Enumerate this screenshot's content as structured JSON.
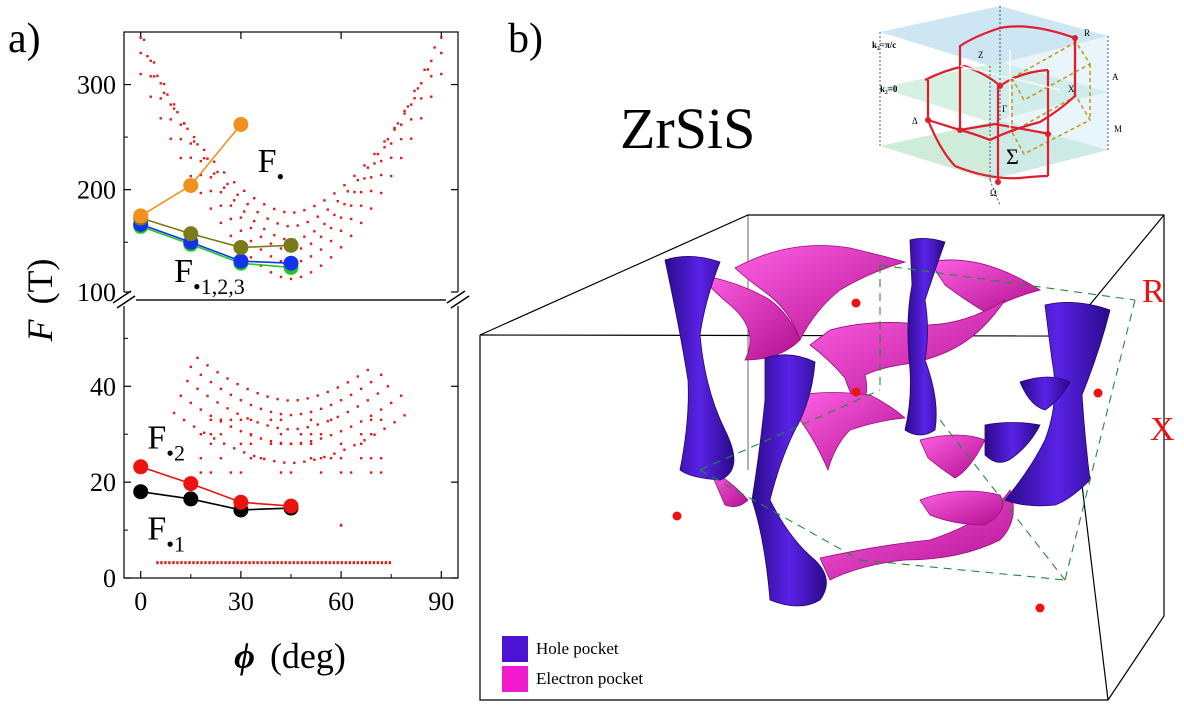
{
  "panel_a_label": "a)",
  "panel_b_label": "b)",
  "material": "ZrSiS",
  "chart_data": {
    "type": "scatter",
    "xlabel_symbol": "ϕ",
    "xlabel_unit": "(deg)",
    "ylabel_symbol": "F",
    "ylabel_unit": "(T)",
    "xlim": [
      -5,
      95
    ],
    "ylim_lower": [
      0,
      58
    ],
    "ylim_upper": [
      95,
      350
    ],
    "broken_axis": true,
    "x_ticks": [
      "0",
      "30",
      "60",
      "90"
    ],
    "y_ticks_lower": [
      "0",
      "20",
      "40"
    ],
    "y_ticks_upper": [
      "100",
      "200",
      "300"
    ],
    "branch_labels": [
      {
        "main": "F",
        "sub": "•1",
        "x": 2,
        "y": 8
      },
      {
        "main": "F",
        "sub": "•2",
        "x": 2,
        "y": 27
      },
      {
        "main": "F",
        "sub": "•1,2,3",
        "x": 10,
        "y": 112
      },
      {
        "main": "F",
        "sub": "•",
        "x": 35,
        "y": 217
      }
    ],
    "series": [
      {
        "color": "#000000",
        "x": [
          0,
          15,
          30,
          45
        ],
        "y": [
          18,
          16.5,
          14.2,
          14.6
        ]
      },
      {
        "color": "#ee1111",
        "x": [
          0,
          15,
          30,
          45
        ],
        "y": [
          23.2,
          19.7,
          15.8,
          15
        ]
      },
      {
        "color": "#22c822",
        "x": [
          0,
          15,
          30,
          45
        ],
        "y": [
          165,
          148,
          130,
          126
        ]
      },
      {
        "color": "#1133ee",
        "x": [
          0,
          15,
          30,
          45
        ],
        "y": [
          167,
          150,
          132,
          130
        ]
      },
      {
        "color": "#7a7a1a",
        "x": [
          0,
          15,
          30,
          45
        ],
        "y": [
          173,
          158,
          145,
          147
        ]
      },
      {
        "color": "#f0911f",
        "x": [
          0,
          15,
          30
        ],
        "y": [
          175,
          204,
          262
        ]
      }
    ],
    "calc_color": "#e41a1a",
    "calc_upper_arcs": [
      {
        "lo": 115,
        "hi": 310,
        "xmin": 0,
        "xmax": 92
      },
      {
        "lo": 130,
        "hi": 330,
        "xmin": 0,
        "xmax": 92
      },
      {
        "lo": 142,
        "hi": 345,
        "xmin": 0,
        "xmax": 91
      },
      {
        "lo": 152,
        "hi": 350,
        "xmin": 1,
        "xmax": 90
      },
      {
        "lo": 165,
        "hi": 340,
        "xmin": 2,
        "xmax": 88
      },
      {
        "lo": 178,
        "hi": 330,
        "xmin": 4,
        "xmax": 84
      }
    ],
    "calc_lower_arcs": [
      {
        "lo": 24,
        "hi": 40,
        "xmin": 10,
        "xmax": 80
      },
      {
        "lo": 28,
        "hi": 45,
        "xmin": 12,
        "xmax": 78
      },
      {
        "lo": 31,
        "hi": 50,
        "xmin": 14,
        "xmax": 75
      },
      {
        "lo": 34,
        "hi": 54,
        "xmin": 15,
        "xmax": 72
      },
      {
        "lo": 37,
        "hi": 57,
        "xmin": 17,
        "xmax": 70
      }
    ],
    "calc_bottom_row": {
      "y": 3.2,
      "xmin": 5,
      "xmax": 75
    }
  },
  "bz_inset": {
    "labels": [
      "k₂=π/c",
      "k₂=0",
      "R",
      "Z",
      "A",
      "X",
      "Γ",
      "M",
      "Δ",
      "Σ",
      "Ω"
    ]
  },
  "fermi_surface": {
    "labels": [
      "R",
      "X"
    ],
    "hole_color": "#4b14d4",
    "electron_color": "#ef1bcc",
    "legend": [
      "Hole pocket",
      "Electron pocket"
    ]
  }
}
